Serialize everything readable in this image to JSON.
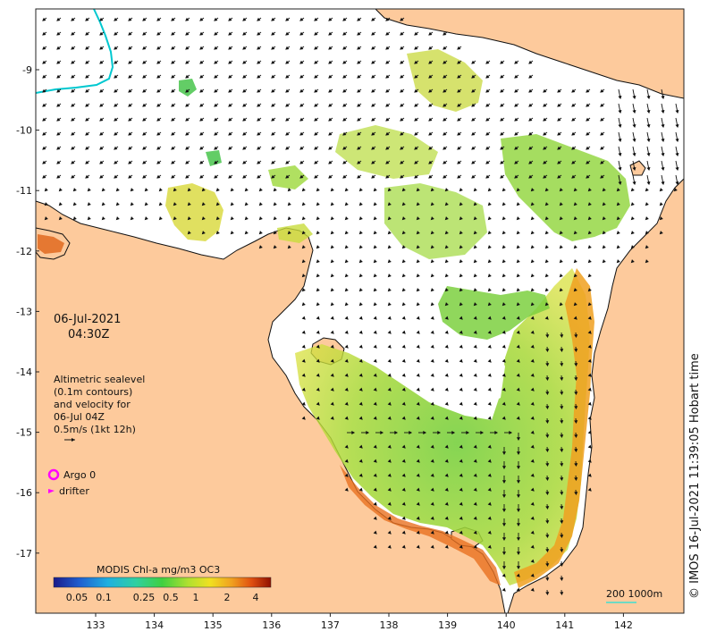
{
  "map": {
    "date": "06-Jul-2021",
    "time": "04:30Z",
    "annotation_lines": [
      "Altimetric sealevel",
      "(0.1m contours)",
      "and velocity for",
      "06-Jul 04Z",
      "0.5m/s (1kt 12h)"
    ],
    "legend": {
      "argo_label": "Argo 0",
      "drifter_label": "drifter",
      "argo_color": "#ff00ff",
      "drifter_color": "#ff00ff"
    },
    "colorbar": {
      "title": "MODIS Chl-a mg/m3 OC3",
      "ticks": [
        "0.05",
        "0.1",
        "0.25",
        "0.5",
        "1",
        "2",
        "4"
      ]
    },
    "scale_label": "200  1000m",
    "scale_color": "#40e0d0",
    "copyright": "© IMOS 16-Jul-2021 11:39:05 Hobart time",
    "lon_ticks": [
      "133",
      "134",
      "135",
      "136",
      "137",
      "138",
      "139",
      "140",
      "141",
      "142"
    ],
    "lat_ticks": [
      "9",
      "10",
      "11",
      "12",
      "13",
      "14",
      "15",
      "16",
      "17"
    ],
    "colors": {
      "land": "#fdca9c",
      "ocean": "#ffffff",
      "coast": "#111111",
      "contour": "#00c8d0"
    }
  }
}
